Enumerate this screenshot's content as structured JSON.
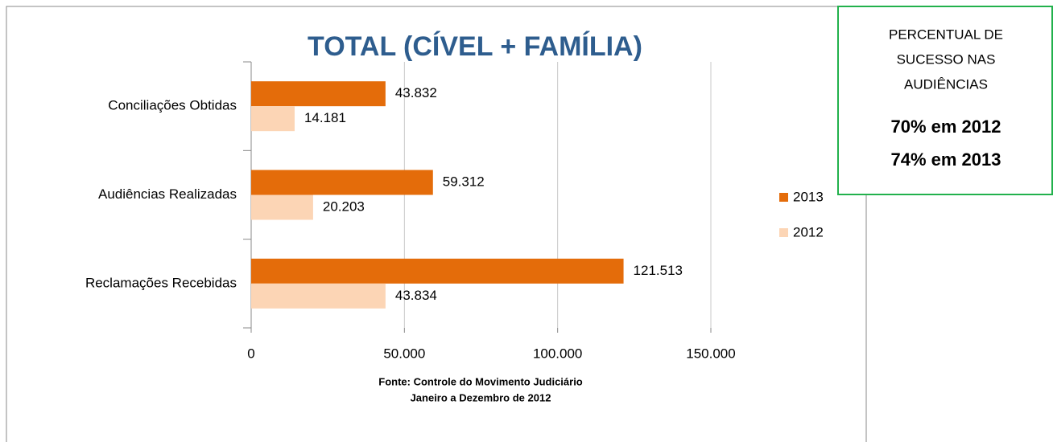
{
  "chart_data": {
    "type": "hbar",
    "title": "TOTAL (CÍVEL + FAMÍLIA)",
    "categories": [
      "Conciliações Obtidas",
      "Audiências Realizadas",
      "Reclamações Recebidas"
    ],
    "series": [
      {
        "name": "2013",
        "color": "#e46c0a",
        "values": [
          43832,
          59312,
          121513
        ],
        "value_labels": [
          "43.832",
          "59.312",
          "121.513"
        ]
      },
      {
        "name": "2012",
        "color": "#fcd5b5",
        "values": [
          14181,
          20203,
          43834
        ],
        "value_labels": [
          "14.181",
          "20.203",
          "43.834"
        ]
      }
    ],
    "xlim": [
      0,
      150000
    ],
    "xticks": [
      0,
      {
        "value": 50000,
        "label": "50.000"
      },
      {
        "value": 100000,
        "label": "100.000"
      },
      {
        "value": 150000,
        "label": "150.000"
      }
    ],
    "grid": true,
    "legend": "right",
    "source": [
      "Fonte: Controle do Movimento Judiciário",
      "Janeiro a Dezembro de 2012"
    ],
    "annotation": {
      "text": [
        "PERCENTUAL DE",
        "SUCESSO NAS",
        "AUDIÊNCIAS"
      ],
      "highlights": [
        "70% em 2012",
        "74% em 2013"
      ]
    }
  }
}
